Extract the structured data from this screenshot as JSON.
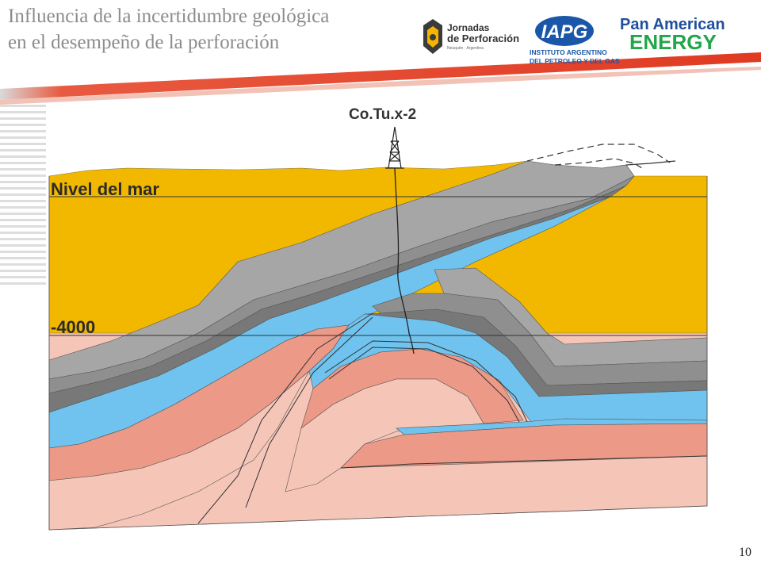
{
  "slide": {
    "title_line1": "Influencia de la incertidumbre geológica",
    "title_line2": "en el desempeño  de la perforación",
    "page_number": "10"
  },
  "logos": {
    "jornadas": {
      "line1": "Jornadas",
      "line2": "de Perforación",
      "small": "Neuquén · Argentina"
    },
    "iapg": {
      "mark": "IAPG",
      "line1": "INSTITUTO ARGENTINO",
      "line2": "DEL PETROLEO Y DEL GAS"
    },
    "pae": {
      "line1": "Pan American",
      "line2": "ENERGY"
    }
  },
  "diagram": {
    "well_label": "Co.Tu.x-2",
    "sea_level_label": "Nivel del mar",
    "depth_label": "-4000"
  },
  "colors": {
    "overburden": "#f2b800",
    "gray_light": "#a6a6a6",
    "gray_mid": "#8f8f8f",
    "gray_dark": "#787878",
    "blue": "#6fc3ee",
    "salmon": "#ec9987",
    "pink": "#f5c6b8",
    "banner_red": "#e34a33",
    "pae_blue": "#1f4f9c",
    "pae_green": "#21a64a"
  }
}
